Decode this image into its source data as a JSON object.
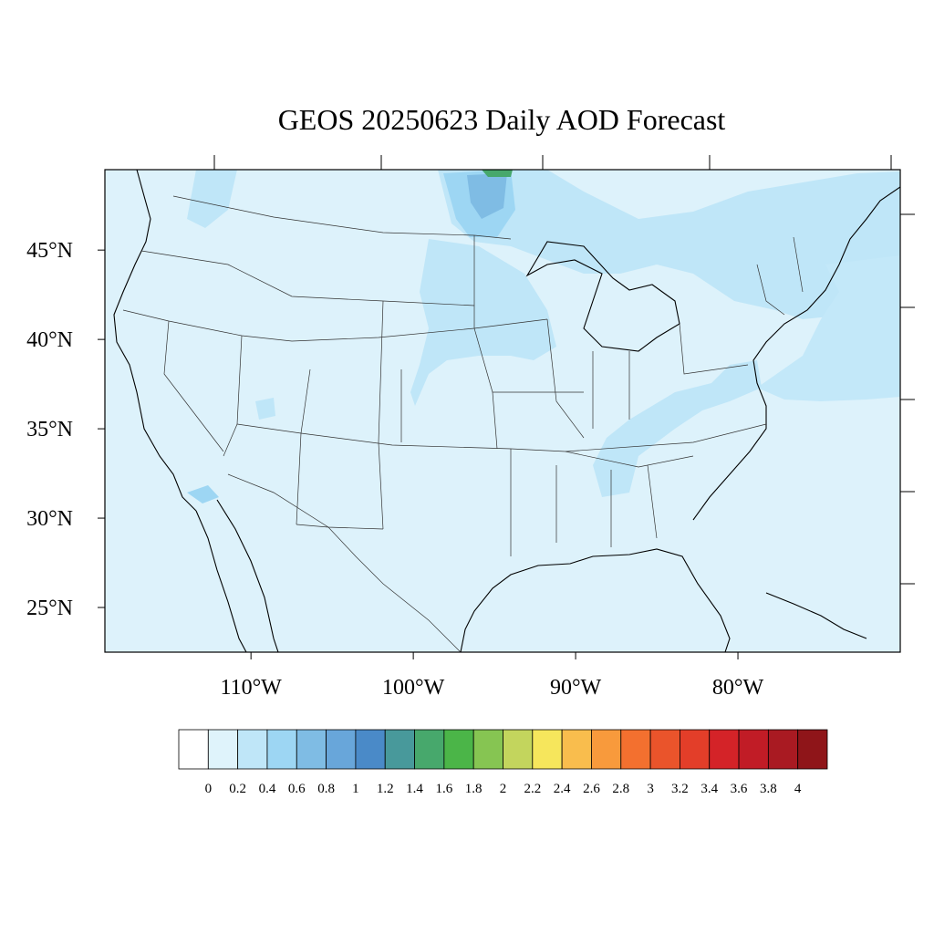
{
  "title": "GEOS 20250623 Daily AOD Forecast",
  "map": {
    "lon_range": [
      -119,
      -70
    ],
    "lat_range": [
      22.5,
      49.5
    ],
    "background_color": "#ddf2fb",
    "lat_labels": [
      "45°N",
      "40°N",
      "35°N",
      "30°N",
      "25°N"
    ],
    "lat_values": [
      45,
      40,
      35,
      30,
      25
    ],
    "lon_labels": [
      "110°W",
      "100°W",
      "90°W",
      "80°W"
    ],
    "lon_values": [
      -110,
      -100,
      -90,
      -80
    ]
  },
  "colorbar": {
    "labels": [
      "0",
      "0.2",
      "0.4",
      "0.6",
      "0.8",
      "1",
      "1.2",
      "1.4",
      "1.6",
      "1.8",
      "2",
      "2.2",
      "2.4",
      "2.6",
      "2.8",
      "3",
      "3.2",
      "3.4",
      "3.6",
      "3.8",
      "4"
    ],
    "colors": [
      "#ffffff",
      "#dff3fb",
      "#bfe6f8",
      "#9dd6f3",
      "#7fbce4",
      "#68a6da",
      "#4a8ac8",
      "#48999b",
      "#47a86c",
      "#4bb548",
      "#86c552",
      "#c3d55d",
      "#f6e65c",
      "#f9bd4d",
      "#f89a3c",
      "#f3702f",
      "#ea542b",
      "#e33e29",
      "#d42328",
      "#c11c26",
      "#a91a22",
      "#8f1519"
    ]
  }
}
